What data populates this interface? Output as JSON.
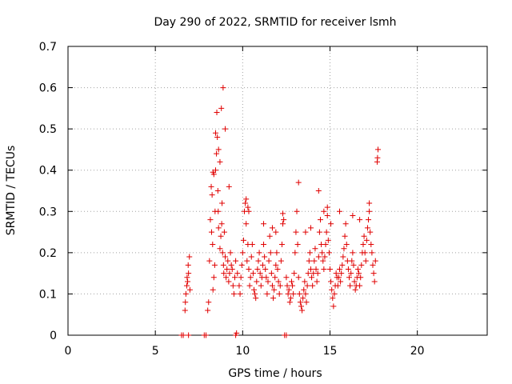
{
  "chart_data": {
    "type": "scatter",
    "title": "Day 290 of 2022, SRMTID for receiver lsmh",
    "xlabel": "GPS time / hours",
    "ylabel": "SRMTID / TECUs",
    "xlim": [
      0,
      24
    ],
    "ylim": [
      0,
      0.7
    ],
    "xticks": [
      0,
      5,
      10,
      15,
      20
    ],
    "yticks": [
      0,
      0.1,
      0.2,
      0.3,
      0.4,
      0.5,
      0.6,
      0.7
    ],
    "xtick_labels": [
      "0",
      "5",
      "10",
      "15",
      "20"
    ],
    "ytick_labels": [
      "0",
      "0.1",
      "0.2",
      "0.3",
      "0.4",
      "0.5",
      "0.6",
      "0.7"
    ],
    "grid": true,
    "marker": "+",
    "series": [
      {
        "name": "SRMTID",
        "color": "#e00000",
        "x": [
          6.5,
          6.6,
          6.9,
          7.8,
          7.9,
          9.6,
          9.65,
          12.4,
          12.5,
          6.7,
          6.72,
          6.75,
          6.8,
          6.82,
          6.85,
          6.88,
          6.9,
          6.95,
          6.98,
          8.0,
          8.05,
          8.1,
          8.15,
          8.2,
          8.22,
          8.28,
          8.3,
          8.35,
          8.4,
          8.42,
          8.45,
          8.5,
          8.55,
          8.58,
          8.6,
          8.62,
          8.7,
          8.75,
          8.8,
          8.82,
          8.85,
          8.9,
          8.92,
          8.95,
          9.0,
          9.05,
          9.1,
          9.15,
          9.2,
          9.25,
          9.3,
          9.35,
          9.4,
          9.45,
          9.5,
          9.55,
          9.6,
          9.7,
          9.8,
          9.85,
          9.9,
          9.95,
          10.0,
          10.05,
          10.1,
          10.15,
          10.2,
          10.25,
          10.3,
          10.35,
          10.4,
          10.45,
          10.5,
          10.55,
          10.6,
          10.65,
          10.7,
          10.75,
          10.8,
          10.85,
          10.9,
          10.95,
          11.0,
          11.05,
          11.1,
          11.15,
          11.2,
          11.25,
          11.3,
          11.35,
          11.4,
          11.45,
          11.5,
          11.55,
          11.6,
          11.65,
          11.7,
          11.75,
          11.8,
          11.85,
          11.9,
          11.95,
          12.0,
          12.05,
          12.1,
          12.15,
          12.2,
          12.25,
          12.3,
          12.5,
          12.55,
          12.6,
          12.65,
          12.7,
          12.75,
          12.8,
          12.85,
          12.9,
          12.95,
          13.0,
          13.05,
          13.1,
          13.15,
          13.2,
          13.25,
          13.3,
          13.35,
          13.4,
          13.45,
          13.5,
          13.55,
          13.6,
          13.65,
          13.7,
          13.75,
          13.8,
          13.85,
          13.9,
          13.95,
          14.0,
          14.05,
          14.1,
          14.15,
          14.2,
          14.25,
          14.3,
          14.35,
          14.4,
          14.45,
          14.5,
          14.55,
          14.6,
          14.65,
          14.7,
          14.75,
          14.8,
          14.85,
          14.9,
          14.95,
          15.0,
          15.05,
          15.1,
          15.15,
          15.2,
          15.25,
          15.3,
          15.35,
          15.4,
          15.45,
          15.5,
          15.55,
          15.6,
          15.65,
          15.7,
          15.75,
          15.8,
          15.85,
          15.9,
          15.95,
          16.0,
          16.05,
          16.1,
          16.15,
          16.2,
          16.25,
          16.3,
          16.35,
          16.4,
          16.45,
          16.5,
          16.55,
          16.6,
          16.65,
          16.7,
          16.75,
          16.8,
          16.85,
          16.9,
          16.95,
          17.0,
          17.05,
          17.1,
          17.15,
          17.2,
          17.25,
          17.3,
          17.35,
          17.4,
          17.45,
          17.5,
          17.55,
          17.6,
          17.7,
          17.72,
          17.75,
          8.88,
          8.45,
          8.52,
          8.35,
          8.3,
          8.25,
          8.62,
          8.7,
          8.78,
          9.0,
          9.22,
          10.2,
          10.3,
          10.35,
          11.7,
          12.3,
          12.35,
          13.2,
          13.9,
          14.35,
          14.85,
          17.25,
          16.3,
          16.7,
          15.55,
          15.05,
          14.65,
          11.2,
          11.9,
          13.6
        ],
        "y": [
          0,
          0,
          0,
          0,
          0,
          0,
          0.005,
          0,
          0,
          0.06,
          0.08,
          0.1,
          0.12,
          0.14,
          0.13,
          0.17,
          0.15,
          0.19,
          0.11,
          0.06,
          0.08,
          0.18,
          0.28,
          0.36,
          0.25,
          0.22,
          0.11,
          0.14,
          0.17,
          0.3,
          0.4,
          0.44,
          0.48,
          0.35,
          0.3,
          0.26,
          0.21,
          0.24,
          0.27,
          0.32,
          0.2,
          0.17,
          0.15,
          0.25,
          0.19,
          0.14,
          0.16,
          0.18,
          0.13,
          0.15,
          0.2,
          0.17,
          0.16,
          0.12,
          0.1,
          0.14,
          0.18,
          0.15,
          0.12,
          0.1,
          0.14,
          0.17,
          0.2,
          0.23,
          0.3,
          0.32,
          0.27,
          0.18,
          0.22,
          0.16,
          0.12,
          0.14,
          0.19,
          0.22,
          0.15,
          0.11,
          0.1,
          0.09,
          0.13,
          0.16,
          0.18,
          0.2,
          0.15,
          0.12,
          0.14,
          0.17,
          0.22,
          0.19,
          0.16,
          0.14,
          0.1,
          0.13,
          0.18,
          0.24,
          0.2,
          0.15,
          0.12,
          0.09,
          0.11,
          0.14,
          0.17,
          0.2,
          0.16,
          0.13,
          0.1,
          0.12,
          0.18,
          0.22,
          0.27,
          0.14,
          0.12,
          0.1,
          0.11,
          0.08,
          0.09,
          0.13,
          0.12,
          0.1,
          0.15,
          0.2,
          0.25,
          0.3,
          0.22,
          0.14,
          0.1,
          0.08,
          0.07,
          0.06,
          0.09,
          0.11,
          0.13,
          0.1,
          0.08,
          0.12,
          0.15,
          0.18,
          0.2,
          0.16,
          0.14,
          0.12,
          0.15,
          0.18,
          0.21,
          0.16,
          0.13,
          0.15,
          0.19,
          0.25,
          0.28,
          0.22,
          0.2,
          0.18,
          0.16,
          0.19,
          0.22,
          0.25,
          0.29,
          0.23,
          0.2,
          0.16,
          0.13,
          0.11,
          0.09,
          0.07,
          0.1,
          0.12,
          0.15,
          0.14,
          0.12,
          0.14,
          0.16,
          0.13,
          0.15,
          0.17,
          0.19,
          0.21,
          0.24,
          0.27,
          0.22,
          0.18,
          0.16,
          0.14,
          0.12,
          0.15,
          0.18,
          0.2,
          0.17,
          0.13,
          0.11,
          0.12,
          0.14,
          0.16,
          0.15,
          0.12,
          0.14,
          0.17,
          0.2,
          0.22,
          0.24,
          0.2,
          0.18,
          0.23,
          0.26,
          0.28,
          0.3,
          0.25,
          0.22,
          0.2,
          0.17,
          0.15,
          0.13,
          0.18,
          0.42,
          0.43,
          0.45,
          0.6,
          0.49,
          0.54,
          0.39,
          0.395,
          0.34,
          0.45,
          0.42,
          0.55,
          0.5,
          0.36,
          0.33,
          0.31,
          0.3,
          0.26,
          0.295,
          0.28,
          0.37,
          0.26,
          0.35,
          0.31,
          0.32,
          0.29,
          0.28,
          0.3,
          0.27,
          0.3,
          0.27,
          0.25,
          0.25
        ]
      }
    ]
  }
}
